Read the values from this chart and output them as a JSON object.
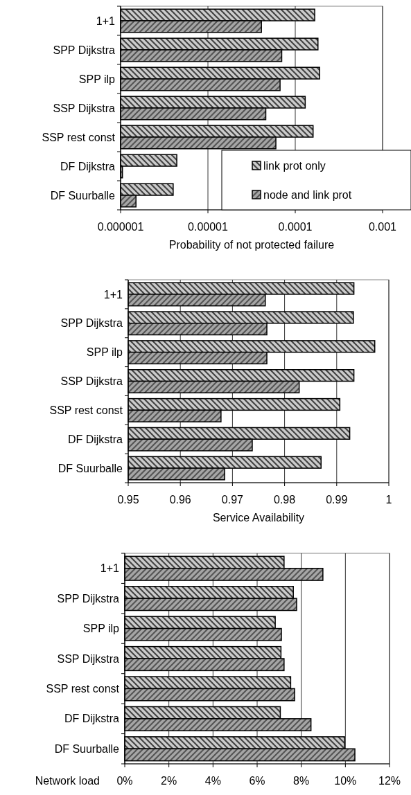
{
  "chart_data": [
    {
      "type": "bar",
      "orientation": "horizontal",
      "log": "x",
      "grid": "x",
      "legend": "bottom right",
      "xlabel": "Probability of not protected failure",
      "categories": [
        "1+1",
        "SPP Dijkstra",
        "SPP ilp",
        "SSP Dijkstra",
        "SSP rest const",
        "DF Dijkstra",
        "DF Suurballe"
      ],
      "xlim": [
        1e-06,
        0.001
      ],
      "xticks": [
        {
          "value": 1e-06,
          "label": "0.000001"
        },
        {
          "value": 1e-05,
          "label": "0.00001"
        },
        0.0001,
        0.001
      ],
      "series": [
        {
          "name": "link prot only",
          "color": "#cccccc",
          "values": [
            0.000167,
            0.000182,
            0.00019,
            0.00013,
            0.00016,
            4.4e-06,
            4e-06
          ]
        },
        {
          "name": "node and link prot",
          "color": "#a6a6a6",
          "values": [
            4.1e-05,
            7e-05,
            6.7e-05,
            4.6e-05,
            6e-05,
            1.05e-06,
            1.5e-06
          ]
        }
      ]
    },
    {
      "type": "bar",
      "orientation": "horizontal",
      "grid": "x",
      "xlabel": "Service Availability",
      "categories": [
        "1+1",
        "SPP Dijkstra",
        "SPP ilp",
        "SSP Dijkstra",
        "SSP rest const",
        "DF Dijkstra",
        "DF Suurballe"
      ],
      "xlim": [
        0.95,
        1
      ],
      "xticks": [
        0.95,
        0.96,
        0.97,
        0.98,
        0.99,
        1
      ],
      "series": [
        {
          "color": "#cccccc",
          "values": [
            0.9933,
            0.9932,
            0.9973,
            0.9933,
            0.9906,
            0.9925,
            0.987
          ]
        },
        {
          "color": "#a6a6a6",
          "values": [
            0.9763,
            0.9766,
            0.9766,
            0.9828,
            0.9678,
            0.9738,
            0.9685
          ]
        }
      ]
    },
    {
      "type": "bar",
      "orientation": "horizontal",
      "grid": "x",
      "xlabel": "Network load",
      "categories": [
        "1+1",
        "SPP Dijkstra",
        "SPP ilp",
        "SSP Dijkstra",
        "SSP rest const",
        "DF Dijkstra",
        "DF Suurballe"
      ],
      "xlim": [
        0,
        12
      ],
      "xticks": [
        {
          "value": 0,
          "label": "0%"
        },
        {
          "value": 2,
          "label": "2%"
        },
        {
          "value": 4,
          "label": "4%"
        },
        {
          "value": 6,
          "label": "6%"
        },
        {
          "value": 8,
          "label": "8%"
        },
        {
          "value": 10,
          "label": "10%"
        },
        {
          "value": 12,
          "label": "12%"
        }
      ],
      "series": [
        {
          "color": "#cccccc",
          "values": [
            7.22,
            7.64,
            6.82,
            7.08,
            7.52,
            7.05,
            9.96
          ]
        },
        {
          "color": "#a6a6a6",
          "values": [
            8.98,
            7.79,
            7.1,
            7.22,
            7.7,
            8.44,
            10.43
          ]
        }
      ]
    }
  ]
}
